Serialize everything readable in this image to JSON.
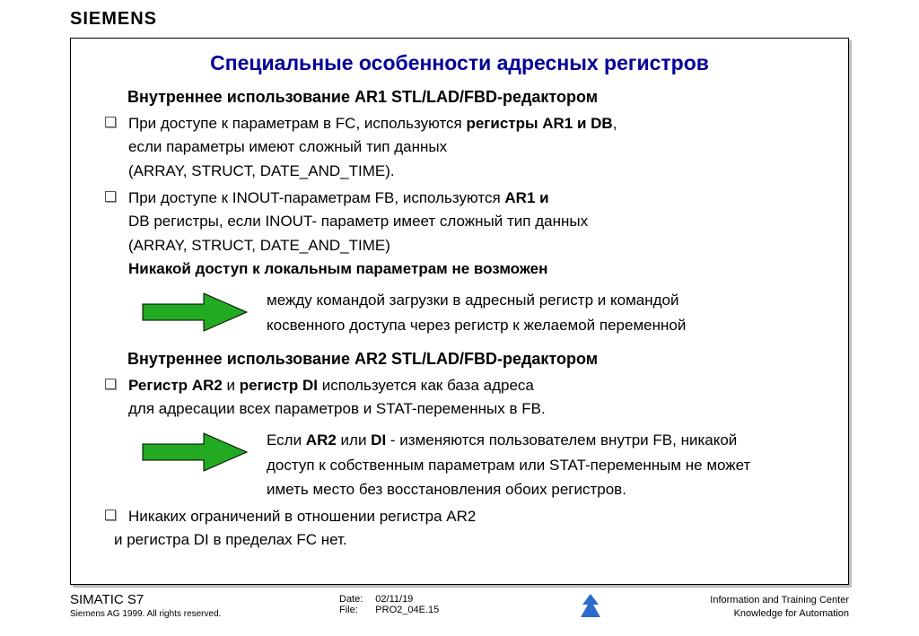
{
  "brand": "SIEMENS",
  "title": "Специальные особенности адресных регистров",
  "title_color": "#000099",
  "section1": {
    "heading": "Внутреннее использование AR1 STL/LAD/FBD-редактором",
    "bullets": [
      {
        "lines": [
          [
            {
              "t": "При доступе к параметрам в FC, используются "
            },
            {
              "t": "регистры AR1 и DB",
              "b": true
            },
            {
              "t": ","
            }
          ],
          [
            {
              "t": "если параметры имеют сложный тип данных"
            }
          ],
          [
            {
              "t": "(ARRAY, STRUCT, DATE_AND_TIME)."
            }
          ]
        ]
      },
      {
        "lines": [
          [
            {
              "t": "При доступе к INOUT-параметрам FB, используются "
            },
            {
              "t": "AR1 и",
              "b": true
            }
          ],
          [
            {
              "t": "DB регистры",
              "b": true
            },
            {
              "t": ", если INOUT- параметр имеет сложный тип данных"
            }
          ],
          [
            {
              "t": "(ARRAY, STRUCT, DATE_AND_TIME)"
            }
          ]
        ],
        "tail_bold": "Никакой доступ к локальным параметрам не возможен"
      }
    ],
    "arrow": {
      "fill": "#22aa22",
      "stroke": "#000000",
      "lines": [
        [
          {
            "t": "между командой загрузки в адресный регистр и командой"
          }
        ],
        [
          {
            "t": "косвенного доступа через регистр к желаемой переменной"
          }
        ]
      ]
    }
  },
  "section2": {
    "heading": "Внутреннее использование AR2 STL/LAD/FBD-редактором",
    "bullets_top": [
      {
        "lines": [
          [
            {
              "t": "Регистр AR2",
              "b": true
            },
            {
              "t": " и "
            },
            {
              "t": "регистр DI",
              "b": true
            },
            {
              "t": " используется как база адреса"
            }
          ],
          [
            {
              "t": "для адресации всех параметров и STAT-переменных в "
            },
            {
              "t": "FB",
              "b": true
            },
            {
              "t": "."
            }
          ]
        ]
      }
    ],
    "arrow": {
      "fill": "#22aa22",
      "stroke": "#000000",
      "lines": [
        [
          {
            "t": "Если "
          },
          {
            "t": "AR2",
            "b": true
          },
          {
            "t": " или "
          },
          {
            "t": "DI",
            "b": true
          },
          {
            "t": " - изменяются пользователем внутри FB, никакой"
          }
        ],
        [
          {
            "t": "доступ к собственным параметрам или STAT-переменным не может"
          }
        ],
        [
          {
            "t": "иметь место без восстановления обоих регистров."
          }
        ]
      ]
    },
    "bullets_bottom": [
      {
        "lines": [
          [
            {
              "t": "Никаких ограничений в отношении регистра AR2"
            }
          ],
          [
            {
              "t": "и регистра DI в пределах FC нет."
            }
          ]
        ],
        "second_line_unindent": true
      }
    ]
  },
  "footer": {
    "product": "SIMATIC S7",
    "copyright": "Siemens AG 1999. All rights reserved.",
    "date_label": "Date:",
    "date_value": "02/11/19",
    "file_label": "File:",
    "file_value": "PRO2_04E.15",
    "right1": "Information and Training Center",
    "right2": "Knowledge for Automation",
    "logo_color": "#2a6bcc"
  }
}
